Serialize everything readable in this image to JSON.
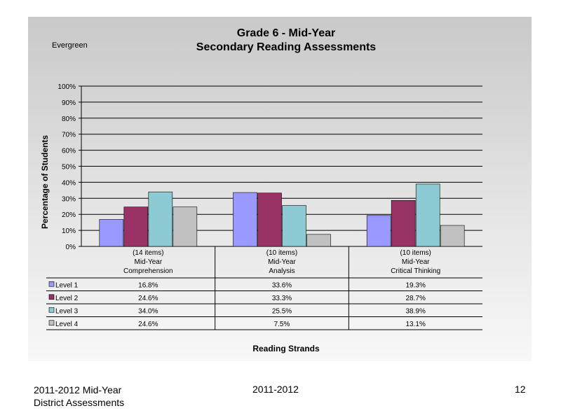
{
  "chart_data": {
    "type": "bar",
    "title": "Grade 6 - Mid-Year",
    "subtitle": "Secondary Reading Assessments",
    "corner_label": "Evergreen",
    "ylabel": "Percentage of Students",
    "xlabel": "Reading Strands",
    "ylim": [
      0,
      100
    ],
    "yticks": [
      "0%",
      "10%",
      "20%",
      "30%",
      "40%",
      "50%",
      "60%",
      "70%",
      "80%",
      "90%",
      "100%"
    ],
    "grid": true,
    "legend": "data-table",
    "categories": [
      {
        "items": "(14 items)",
        "line1": "Mid-Year",
        "line2": "Comprehension"
      },
      {
        "items": "(10 items)",
        "line1": "Mid-Year",
        "line2": "Analysis"
      },
      {
        "items": "(10 items)",
        "line1": "Mid-Year",
        "line2": "Critical Thinking"
      }
    ],
    "series": [
      {
        "name": "Level 1",
        "color": "#9999ff",
        "values": [
          16.8,
          33.6,
          19.3
        ],
        "labels": [
          "16.8%",
          "33.6%",
          "19.3%"
        ]
      },
      {
        "name": "Level 2",
        "color": "#993366",
        "values": [
          24.6,
          33.3,
          28.7
        ],
        "labels": [
          "24.6%",
          "33.3%",
          "28.7%"
        ]
      },
      {
        "name": "Level 3",
        "color": "#8ccbd3",
        "values": [
          34.0,
          25.5,
          38.9
        ],
        "labels": [
          "34.0%",
          "25.5%",
          "38.9%"
        ]
      },
      {
        "name": "Level 4",
        "color": "#c0c0c0",
        "values": [
          24.6,
          7.5,
          13.1
        ],
        "labels": [
          "24.6%",
          "7.5%",
          "13.1%"
        ]
      }
    ]
  },
  "footer": {
    "left_line1": "2011-2012  Mid-Year",
    "left_line2": "District Assessments",
    "center": "2011-2012",
    "page_number": "12"
  }
}
